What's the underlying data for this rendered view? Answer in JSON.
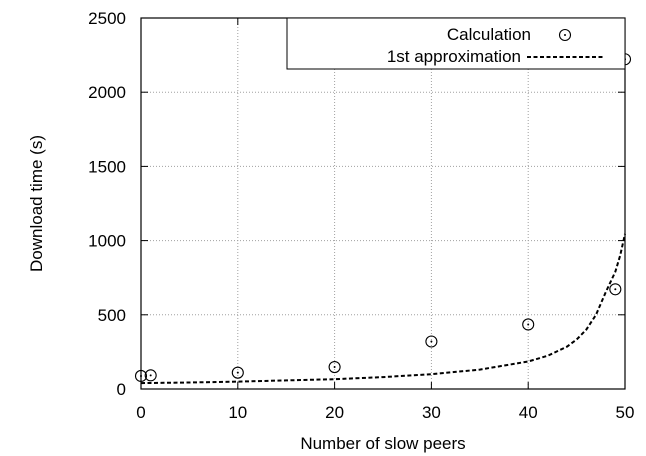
{
  "chart_data": {
    "type": "scatter",
    "xlabel": "Number of slow peers",
    "ylabel": "Download time (s)",
    "xlim": [
      0,
      50
    ],
    "ylim": [
      0,
      2500
    ],
    "xticks": [
      "0",
      "10",
      "20",
      "30",
      "40",
      "50"
    ],
    "yticks": [
      "0",
      "500",
      "1000",
      "1500",
      "2000",
      "2500"
    ],
    "grid": true,
    "legend_position": "top-right",
    "series": [
      {
        "name": "Calculation",
        "style": "points",
        "marker": "circle-dot",
        "x": [
          0,
          1,
          10,
          20,
          30,
          40,
          49,
          50
        ],
        "y": [
          88,
          92,
          110,
          148,
          320,
          435,
          672,
          2222
        ]
      },
      {
        "name": "1st approximation",
        "style": "dashed-line",
        "x": [
          0,
          5,
          10,
          15,
          20,
          25,
          30,
          35,
          40,
          42,
          44,
          45,
          46,
          47,
          48,
          49,
          49.5,
          50
        ],
        "y": [
          40,
          44,
          50,
          58,
          66,
          80,
          100,
          131,
          185,
          224,
          285,
          333,
          400,
          500,
          650,
          790,
          900,
          1045
        ]
      }
    ]
  },
  "colors": {
    "axis": "#000000",
    "grid": "#a0a0a0",
    "marker": "#000000",
    "line": "#000000"
  }
}
